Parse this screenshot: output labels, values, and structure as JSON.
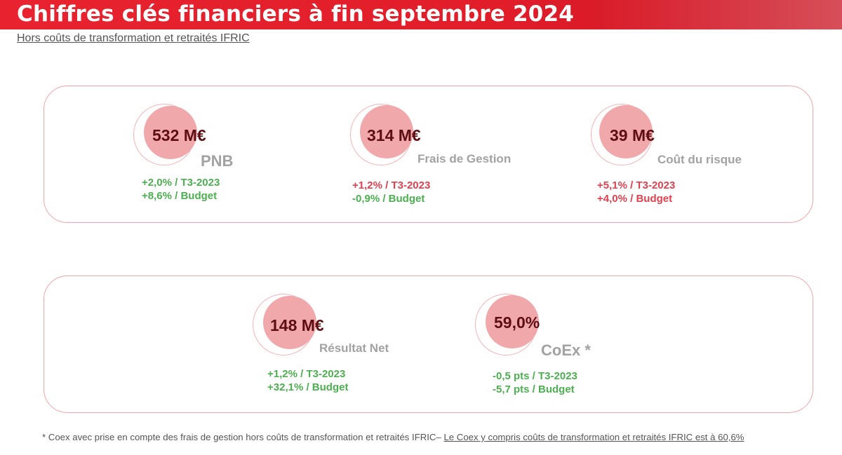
{
  "header": {
    "title": "Chiffres clés financiers à fin septembre 2024",
    "subtitle": "Hors coûts de transformation et retraités IFRIC"
  },
  "colors": {
    "accent": "#e11d2a",
    "bubble": "#f0a8ab",
    "value_text": "#5e0e11",
    "positive": "#4caf50",
    "negative": "#e0404f",
    "label_grey": "#a2a2a2"
  },
  "kpis": [
    {
      "value": "532 M€",
      "label": "PNB",
      "stats": [
        {
          "text": "+2,0% / T3-2023",
          "tone": "positive"
        },
        {
          "text": "+8,6% / Budget",
          "tone": "positive"
        }
      ]
    },
    {
      "value": "314 M€",
      "label": "Frais de Gestion",
      "stats": [
        {
          "text": "+1,2% / T3-2023",
          "tone": "negative"
        },
        {
          "text": "-0,9% / Budget",
          "tone": "positive"
        }
      ]
    },
    {
      "value": "39 M€",
      "label": "Coût du risque",
      "stats": [
        {
          "text": "+5,1% / T3-2023",
          "tone": "negative"
        },
        {
          "text": "+4,0% / Budget",
          "tone": "negative"
        }
      ]
    },
    {
      "value": "148 M€",
      "label": "Résultat Net",
      "stats": [
        {
          "text": "+1,2% / T3-2023",
          "tone": "positive"
        },
        {
          "text": "+32,1% / Budget",
          "tone": "positive"
        }
      ]
    },
    {
      "value": "59,0%",
      "label": "CoEx *",
      "stats": [
        {
          "text": "-0,5 pts / T3-2023",
          "tone": "positive"
        },
        {
          "text": "-5,7 pts / Budget",
          "tone": "positive"
        }
      ]
    }
  ],
  "footnote": {
    "text": "* Coex avec prise en compte des frais de gestion hors coûts de transformation et retraités IFRIC– ",
    "link_text": "Le Coex y compris coûts de transformation et retraités IFRIC est à 60,6%"
  }
}
